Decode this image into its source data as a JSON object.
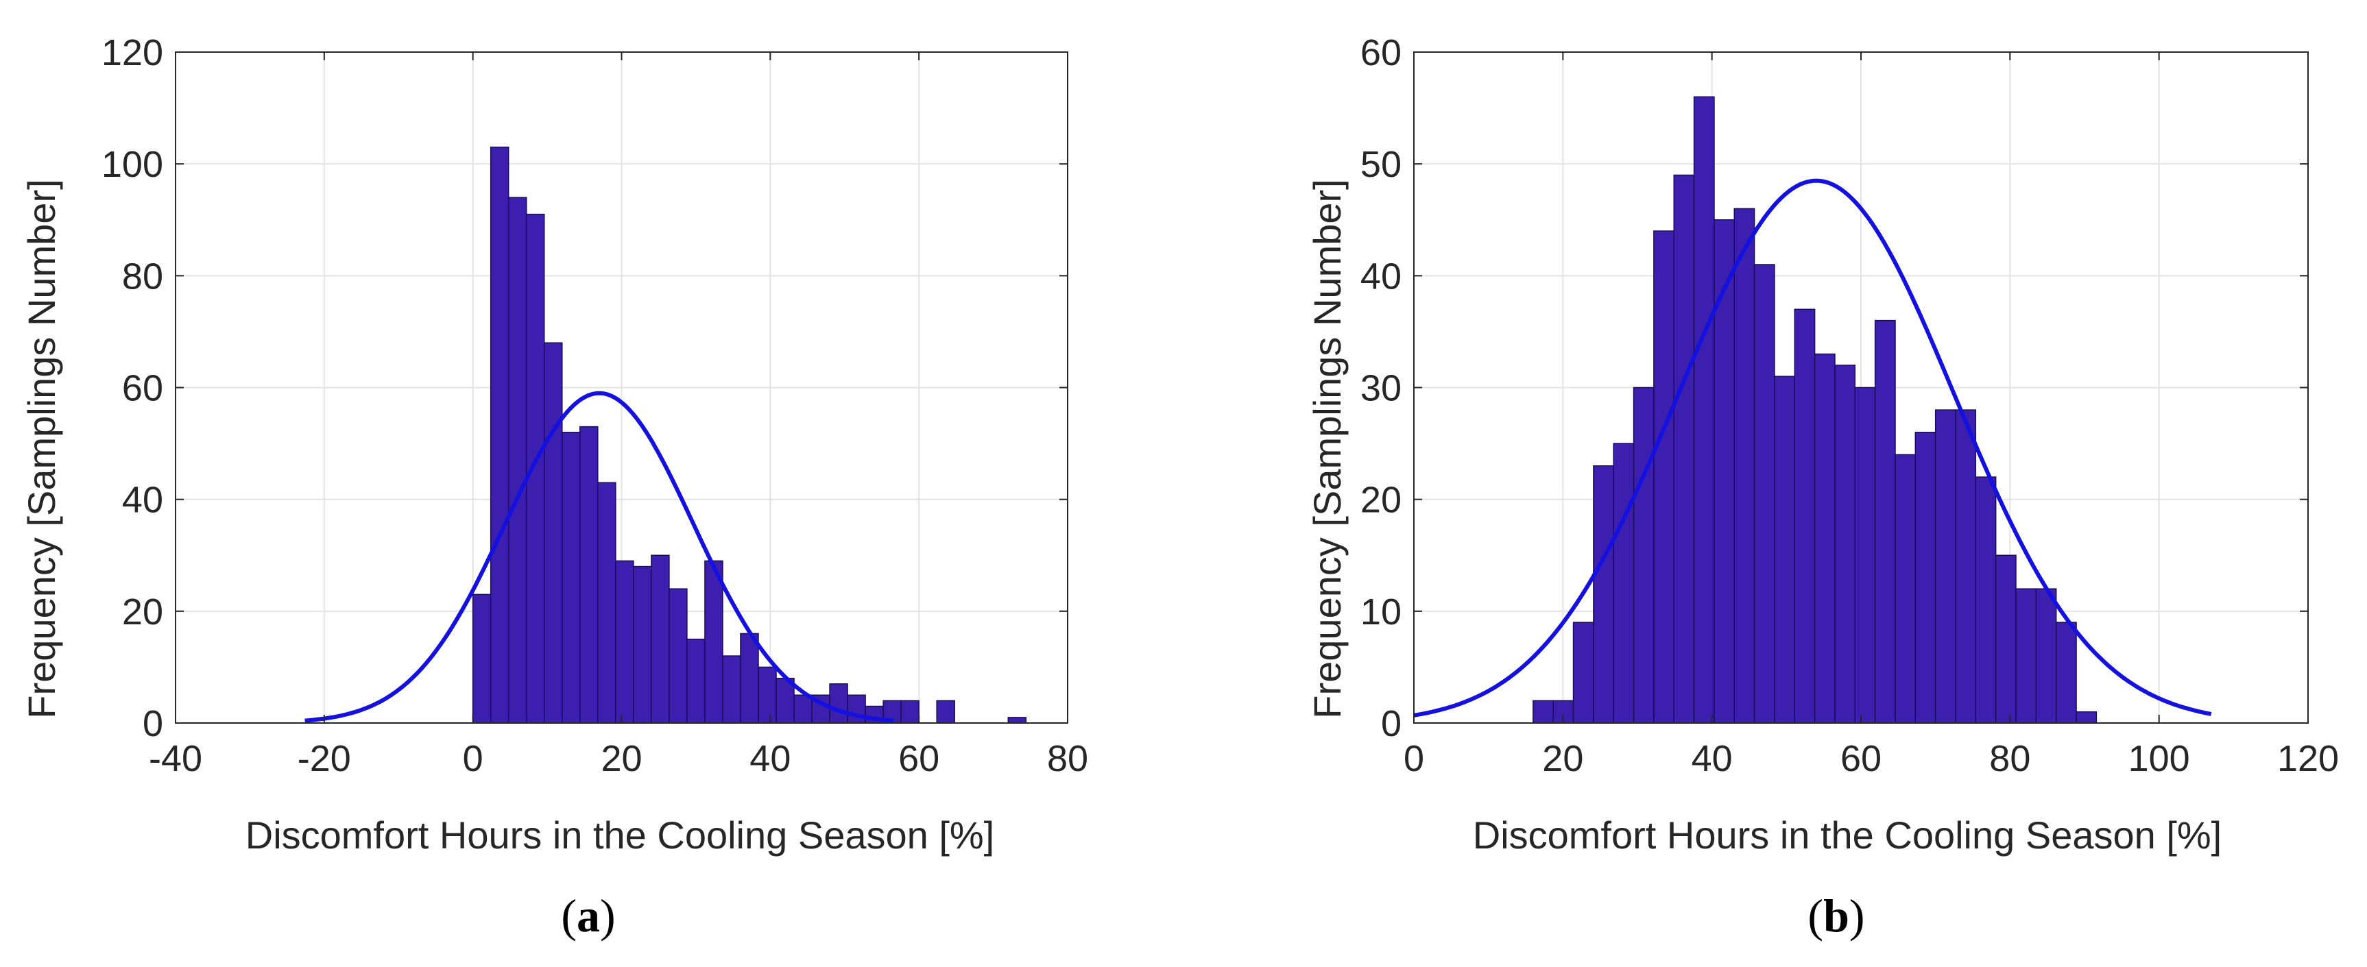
{
  "colors": {
    "bar_fill": "#3d1fb0",
    "bar_edge": "#1a0d55",
    "fit_line": "#1410e0",
    "grid": "#e3e3e3",
    "axis": "#262626"
  },
  "chart_data": [
    {
      "type": "bar",
      "panel_label": "a",
      "title": "",
      "xlabel": "Discomfort Hours in the Cooling Season [%]",
      "ylabel": "Frequency [Samplings Number]",
      "xlim": [
        -40,
        80
      ],
      "ylim": [
        0,
        120
      ],
      "xticks": [
        -40,
        -20,
        0,
        20,
        40,
        60,
        80
      ],
      "yticks": [
        0,
        20,
        40,
        60,
        80,
        100,
        120
      ],
      "grid": true,
      "histogram": {
        "bin_start": 0,
        "bin_width": 2.4,
        "counts": [
          23,
          103,
          94,
          91,
          68,
          52,
          53,
          43,
          29,
          28,
          30,
          24,
          15,
          29,
          12,
          16,
          10,
          8,
          5,
          5,
          7,
          5,
          3,
          4,
          4,
          0,
          4,
          0,
          0,
          0,
          1
        ]
      },
      "normal_fit": {
        "mean": 17,
        "peak": 59,
        "sigma": 12.6,
        "x_range": [
          -22.6,
          56.6
        ]
      }
    },
    {
      "type": "bar",
      "panel_label": "b",
      "title": "",
      "xlabel": "Discomfort Hours in the Cooling Season [%]",
      "ylabel": "Frequency [Samplings Number]",
      "xlim": [
        0,
        120
      ],
      "ylim": [
        0,
        60
      ],
      "xticks": [
        0,
        20,
        40,
        60,
        80,
        100,
        120
      ],
      "yticks": [
        0,
        10,
        20,
        30,
        40,
        50,
        60
      ],
      "grid": true,
      "histogram": {
        "bin_start": 16,
        "bin_width": 2.7,
        "counts": [
          2,
          2,
          9,
          23,
          25,
          30,
          44,
          49,
          56,
          45,
          46,
          41,
          31,
          37,
          33,
          32,
          30,
          36,
          24,
          26,
          28,
          28,
          22,
          15,
          12,
          12,
          9,
          1
        ]
      },
      "normal_fit": {
        "mean": 54,
        "peak": 48.5,
        "sigma": 18.5,
        "x_range": [
          0,
          107
        ]
      }
    }
  ]
}
